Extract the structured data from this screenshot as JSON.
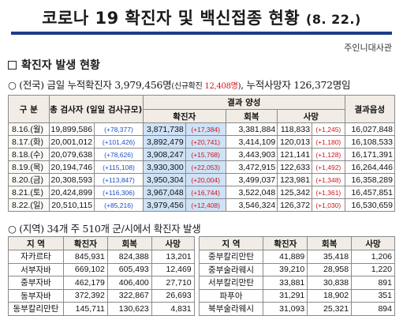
{
  "title": "코로나 19 확진자 및 백신접종 현황",
  "title_date": "(8. 22.)",
  "org": "주인니대사관",
  "section1_title": "확진자 발생 현황",
  "summary": {
    "prefix": "○ (전국) 금일 누적확진자 3,979,456명",
    "new_open": "(신규확진 ",
    "new_value": "12,408명",
    "new_close": ")",
    "suffix": ", 누적사망자 126,372명임"
  },
  "daily_table": {
    "headers": {
      "category": "구 분",
      "total_tests": "총 검사자",
      "total_tests_sub": "(일일 검사규모)",
      "result_group": "결과 양성",
      "confirmed": "확진자",
      "recovered": "회복",
      "deaths": "사망",
      "negative": "결과음성"
    },
    "rows": [
      {
        "date": "8.16.(월)",
        "tests": "19,899,586",
        "tests_delta": "(+78,377)",
        "confirmed": "3,871,738",
        "confirmed_delta": "(+17,384)",
        "recovered": "3,381,884",
        "deaths": "118,833",
        "deaths_delta": "(+1,245)",
        "negative": "16,027,848"
      },
      {
        "date": "8.17.(화)",
        "tests": "20,001,012",
        "tests_delta": "(+101,426)",
        "confirmed": "3,892,479",
        "confirmed_delta": "(+20,741)",
        "recovered": "3,414,109",
        "deaths": "120,013",
        "deaths_delta": "(+1,180)",
        "negative": "16,108,533"
      },
      {
        "date": "8.18.(수)",
        "tests": "20,079,638",
        "tests_delta": "(+78,626)",
        "confirmed": "3,908,247",
        "confirmed_delta": "(+15,768)",
        "recovered": "3,443,903",
        "deaths": "121,141",
        "deaths_delta": "(+1,128)",
        "negative": "16,171,391"
      },
      {
        "date": "8.19.(목)",
        "tests": "20,194,746",
        "tests_delta": "(+115,108)",
        "confirmed": "3,930,300",
        "confirmed_delta": "(+22,053)",
        "recovered": "3,472,915",
        "deaths": "122,633",
        "deaths_delta": "(+1,492)",
        "negative": "16,264,446"
      },
      {
        "date": "8.20.(금)",
        "tests": "20,308,593",
        "tests_delta": "(+113,847)",
        "confirmed": "3,950,304",
        "confirmed_delta": "(+20,004)",
        "recovered": "3,499,037",
        "deaths": "123,981",
        "deaths_delta": "(+1,348)",
        "negative": "16,358,289"
      },
      {
        "date": "8.21.(토)",
        "tests": "20,424,899",
        "tests_delta": "(+116,306)",
        "confirmed": "3,967,048",
        "confirmed_delta": "(+16,744)",
        "recovered": "3,522,048",
        "deaths": "125,342",
        "deaths_delta": "(+1,361)",
        "negative": "16,457,851"
      },
      {
        "date": "8.22.(일)",
        "tests": "20,510,115",
        "tests_delta": "(+85,216)",
        "confirmed": "3,979,456",
        "confirmed_delta": "(+12,408)",
        "recovered": "3,546,324",
        "deaths": "126,372",
        "deaths_delta": "(+1,030)",
        "negative": "16,530,659"
      }
    ]
  },
  "section2_title": "○ (지역) 34개 주 510개 군/시에서 확진자 발생",
  "region_table": {
    "headers": {
      "region": "지 역",
      "confirmed": "확진자",
      "recovered": "회복",
      "deaths": "사망"
    },
    "rows": [
      {
        "l_name": "자카르타",
        "l_conf": "845,931",
        "l_rec": "824,388",
        "l_death": "13,201",
        "r_name": "중부칼리만탄",
        "r_conf": "41,889",
        "r_rec": "35,418",
        "r_death": "1,206"
      },
      {
        "l_name": "서부자바",
        "l_conf": "669,102",
        "l_rec": "605,493",
        "l_death": "12,469",
        "r_name": "중부술라웨시",
        "r_conf": "39,210",
        "r_rec": "28,958",
        "r_death": "1,220"
      },
      {
        "l_name": "중부자바",
        "l_conf": "462,179",
        "l_rec": "406,400",
        "l_death": "27,710",
        "r_name": "서부칼리만탄",
        "r_conf": "33,881",
        "r_rec": "30,838",
        "r_death": "891"
      },
      {
        "l_name": "동부자바",
        "l_conf": "372,392",
        "l_rec": "322,867",
        "l_death": "26,693",
        "r_name": "파푸아",
        "r_conf": "31,291",
        "r_rec": "18,902",
        "r_death": "351"
      },
      {
        "l_name": "동부칼리만탄",
        "l_conf": "145,711",
        "l_rec": "130,623",
        "l_death": "4,831",
        "r_name": "북부술라웨시",
        "r_conf": "31,093",
        "r_rec": "25,321",
        "r_death": "894"
      }
    ]
  }
}
